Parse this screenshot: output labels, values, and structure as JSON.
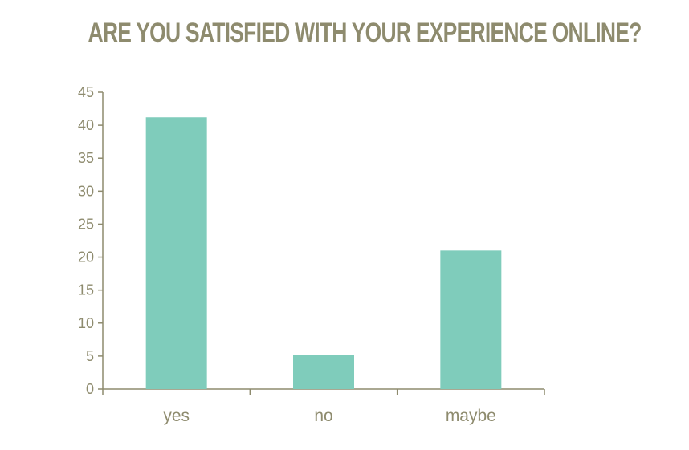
{
  "chart_data": {
    "type": "bar",
    "title": "ARE YOU SATISFIED WITH YOUR EXPERIENCE ONLINE?",
    "categories": [
      "yes",
      "no",
      "maybe"
    ],
    "values": [
      41.2,
      5.2,
      21.0
    ],
    "ylim": [
      0,
      45
    ],
    "yticks": [
      0,
      5,
      10,
      15,
      20,
      25,
      30,
      35,
      40,
      45
    ],
    "xlabel": "",
    "ylabel": "",
    "grid": false,
    "legend": "none",
    "colors": {
      "bar": "#7fccbb",
      "axis": "#8e8b6e",
      "text": "#8e8b6e"
    }
  }
}
